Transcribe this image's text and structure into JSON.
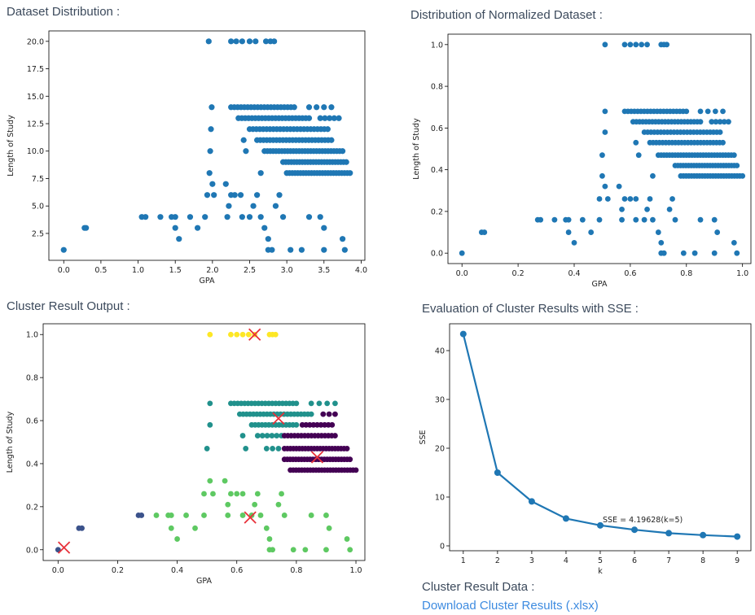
{
  "headings": {
    "dataset": "Dataset Distribution :",
    "normalized": "Distribution of Normalized Dataset :",
    "cluster": "Cluster Result Output :",
    "sse": "Evaluation of Cluster Results with SSE :",
    "cluster_data": "Cluster Result Data :"
  },
  "download_link": "Download Cluster Results (.xlsx)",
  "colors": {
    "point": "#1f77b4",
    "centroid": "#e8313a",
    "cluster_yellow": "#fde725",
    "cluster_teal": "#21918c",
    "cluster_purple": "#440154",
    "cluster_green": "#5ec962",
    "cluster_blue": "#3b528b"
  },
  "chart_data": [
    {
      "id": "dataset",
      "type": "scatter",
      "xlabel": "GPA",
      "ylabel": "Length of Study",
      "xlim": [
        -0.2,
        4.05
      ],
      "ylim": [
        0.05,
        20.95
      ],
      "xticks": [
        "0.0",
        "0.5",
        "1.0",
        "1.5",
        "2.0",
        "2.5",
        "3.0",
        "3.5",
        "4.0"
      ],
      "yticks": [
        "2.5",
        "5.0",
        "7.5",
        "10.0",
        "12.5",
        "15.0",
        "17.5",
        "20.0"
      ],
      "points": [
        [
          0,
          1
        ],
        [
          0.28,
          3
        ],
        [
          0.3,
          3
        ],
        [
          1.05,
          4
        ],
        [
          1.1,
          4
        ],
        [
          1.3,
          4
        ],
        [
          1.45,
          4
        ],
        [
          1.5,
          4
        ],
        [
          1.7,
          4
        ],
        [
          1.9,
          4
        ],
        [
          1.5,
          3
        ],
        [
          1.55,
          2
        ],
        [
          1.8,
          3
        ],
        [
          1.95,
          20
        ],
        [
          2.25,
          20
        ],
        [
          2.32,
          20
        ],
        [
          2.4,
          20
        ],
        [
          2.5,
          20
        ],
        [
          2.58,
          20
        ],
        [
          2.72,
          20
        ],
        [
          2.78,
          20
        ],
        [
          2.83,
          20
        ],
        [
          1.93,
          6
        ],
        [
          2.0,
          7
        ],
        [
          2.02,
          6
        ],
        [
          1.96,
          8
        ],
        [
          1.97,
          10
        ],
        [
          1.98,
          12
        ],
        [
          1.99,
          14
        ],
        [
          2.18,
          7
        ],
        [
          2.22,
          5
        ],
        [
          2.25,
          6
        ],
        [
          2.3,
          6
        ],
        [
          2.38,
          6
        ],
        [
          2.4,
          4
        ],
        [
          2.5,
          4
        ],
        [
          2.55,
          5
        ],
        [
          2.6,
          6
        ],
        [
          2.65,
          4
        ],
        [
          2.7,
          3
        ],
        [
          2.2,
          4
        ],
        [
          2.65,
          8
        ],
        [
          2.75,
          2
        ],
        [
          2.75,
          1
        ],
        [
          2.8,
          1
        ],
        [
          2.85,
          5
        ],
        [
          2.9,
          6
        ],
        [
          2.95,
          4
        ],
        [
          3.05,
          1
        ],
        [
          3.2,
          1
        ],
        [
          3.3,
          4
        ],
        [
          3.45,
          4
        ],
        [
          3.5,
          3
        ],
        [
          3.5,
          1
        ],
        [
          3.75,
          2
        ],
        [
          3.78,
          1
        ],
        [
          2.45,
          10
        ],
        [
          2.42,
          11
        ]
      ],
      "bands": [
        {
          "y": 14,
          "x0": 2.25,
          "x1": 3.1,
          "n": 20
        },
        {
          "y": 14,
          "x0": 3.3,
          "x1": 3.6,
          "n": 4
        },
        {
          "y": 13,
          "x0": 2.35,
          "x1": 3.3,
          "n": 22
        },
        {
          "y": 13,
          "x0": 3.45,
          "x1": 3.7,
          "n": 5
        },
        {
          "y": 12,
          "x0": 2.5,
          "x1": 3.55,
          "n": 24
        },
        {
          "y": 11,
          "x0": 2.6,
          "x1": 3.6,
          "n": 24
        },
        {
          "y": 10,
          "x0": 2.7,
          "x1": 3.75,
          "n": 28
        },
        {
          "y": 9,
          "x0": 2.95,
          "x1": 3.8,
          "n": 24
        },
        {
          "y": 8,
          "x0": 3.0,
          "x1": 3.85,
          "n": 24
        }
      ]
    },
    {
      "id": "normalized",
      "type": "scatter",
      "ylabel": "Length of Study",
      "xlabel": "GPA",
      "xlim": [
        -0.05,
        1.03
      ],
      "ylim": [
        -0.05,
        1.05
      ],
      "xticks": [
        "0.0",
        "0.2",
        "0.4",
        "0.6",
        "0.8",
        "1.0"
      ],
      "yticks": [
        "0.0",
        "0.2",
        "0.4",
        "0.6",
        "0.8",
        "1.0"
      ],
      "points": [
        [
          0,
          0
        ],
        [
          0.07,
          0.1
        ],
        [
          0.08,
          0.1
        ],
        [
          0.27,
          0.16
        ],
        [
          0.28,
          0.16
        ],
        [
          0.33,
          0.16
        ],
        [
          0.37,
          0.16
        ],
        [
          0.38,
          0.16
        ],
        [
          0.43,
          0.16
        ],
        [
          0.49,
          0.16
        ],
        [
          0.38,
          0.1
        ],
        [
          0.4,
          0.05
        ],
        [
          0.46,
          0.1
        ],
        [
          0.51,
          1.0
        ],
        [
          0.58,
          1.0
        ],
        [
          0.6,
          1.0
        ],
        [
          0.62,
          1.0
        ],
        [
          0.64,
          1.0
        ],
        [
          0.66,
          1.0
        ],
        [
          0.71,
          1.0
        ],
        [
          0.72,
          1.0
        ],
        [
          0.73,
          1.0
        ],
        [
          0.49,
          0.26
        ],
        [
          0.51,
          0.32
        ],
        [
          0.52,
          0.26
        ],
        [
          0.5,
          0.37
        ],
        [
          0.5,
          0.47
        ],
        [
          0.51,
          0.58
        ],
        [
          0.51,
          0.68
        ],
        [
          0.56,
          0.32
        ],
        [
          0.57,
          0.21
        ],
        [
          0.58,
          0.26
        ],
        [
          0.6,
          0.26
        ],
        [
          0.62,
          0.26
        ],
        [
          0.62,
          0.16
        ],
        [
          0.65,
          0.16
        ],
        [
          0.66,
          0.21
        ],
        [
          0.67,
          0.26
        ],
        [
          0.68,
          0.16
        ],
        [
          0.7,
          0.1
        ],
        [
          0.57,
          0.16
        ],
        [
          0.68,
          0.37
        ],
        [
          0.71,
          0.05
        ],
        [
          0.71,
          0.0
        ],
        [
          0.72,
          0.0
        ],
        [
          0.74,
          0.21
        ],
        [
          0.75,
          0.26
        ],
        [
          0.76,
          0.16
        ],
        [
          0.79,
          0.0
        ],
        [
          0.83,
          0.0
        ],
        [
          0.85,
          0.16
        ],
        [
          0.9,
          0.16
        ],
        [
          0.91,
          0.1
        ],
        [
          0.9,
          0.0
        ],
        [
          0.97,
          0.05
        ],
        [
          0.98,
          0.0
        ],
        [
          0.63,
          0.47
        ],
        [
          0.62,
          0.53
        ]
      ],
      "bands": [
        {
          "y": 0.68,
          "x0": 0.58,
          "x1": 0.8,
          "n": 20
        },
        {
          "y": 0.68,
          "x0": 0.85,
          "x1": 0.93,
          "n": 4
        },
        {
          "y": 0.63,
          "x0": 0.61,
          "x1": 0.85,
          "n": 22
        },
        {
          "y": 0.63,
          "x0": 0.89,
          "x1": 0.95,
          "n": 5
        },
        {
          "y": 0.58,
          "x0": 0.65,
          "x1": 0.92,
          "n": 24
        },
        {
          "y": 0.53,
          "x0": 0.67,
          "x1": 0.93,
          "n": 24
        },
        {
          "y": 0.47,
          "x0": 0.7,
          "x1": 0.97,
          "n": 28
        },
        {
          "y": 0.42,
          "x0": 0.76,
          "x1": 0.98,
          "n": 24
        },
        {
          "y": 0.37,
          "x0": 0.78,
          "x1": 1.0,
          "n": 24
        }
      ]
    },
    {
      "id": "cluster",
      "type": "scatter",
      "ylabel": "Length of Study",
      "xlabel": "GPA",
      "xlim": [
        -0.05,
        1.03
      ],
      "ylim": [
        -0.05,
        1.05
      ],
      "xticks": [
        "0.0",
        "0.2",
        "0.4",
        "0.6",
        "0.8",
        "1.0"
      ],
      "yticks": [
        "0.0",
        "0.2",
        "0.4",
        "0.6",
        "0.8",
        "1.0"
      ],
      "clusters": [
        {
          "color": "#fde725",
          "points": [
            [
              0.51,
              1.0
            ],
            [
              0.58,
              1.0
            ],
            [
              0.6,
              1.0
            ],
            [
              0.62,
              1.0
            ],
            [
              0.64,
              1.0
            ],
            [
              0.66,
              1.0
            ],
            [
              0.71,
              1.0
            ],
            [
              0.72,
              1.0
            ],
            [
              0.73,
              1.0
            ]
          ],
          "bands": []
        },
        {
          "color": "#21918c",
          "points": [
            [
              0.5,
              0.47
            ],
            [
              0.51,
              0.58
            ],
            [
              0.51,
              0.68
            ],
            [
              0.63,
              0.47
            ],
            [
              0.62,
              0.53
            ]
          ],
          "bands": [
            {
              "y": 0.68,
              "x0": 0.58,
              "x1": 0.8,
              "n": 20
            },
            {
              "y": 0.68,
              "x0": 0.85,
              "x1": 0.93,
              "n": 4
            },
            {
              "y": 0.63,
              "x0": 0.61,
              "x1": 0.85,
              "n": 22
            },
            {
              "y": 0.58,
              "x0": 0.65,
              "x1": 0.8,
              "n": 14
            },
            {
              "y": 0.53,
              "x0": 0.67,
              "x1": 0.75,
              "n": 6
            },
            {
              "y": 0.47,
              "x0": 0.7,
              "x1": 0.74,
              "n": 3
            }
          ]
        },
        {
          "color": "#440154",
          "points": [
            [
              0.89,
              0.63
            ],
            [
              0.91,
              0.63
            ],
            [
              0.93,
              0.63
            ]
          ],
          "bands": [
            {
              "y": 0.58,
              "x0": 0.82,
              "x1": 0.92,
              "n": 9
            },
            {
              "y": 0.53,
              "x0": 0.76,
              "x1": 0.93,
              "n": 16
            },
            {
              "y": 0.47,
              "x0": 0.76,
              "x1": 0.97,
              "n": 22
            },
            {
              "y": 0.42,
              "x0": 0.76,
              "x1": 0.98,
              "n": 24
            },
            {
              "y": 0.37,
              "x0": 0.78,
              "x1": 1.0,
              "n": 24
            }
          ]
        },
        {
          "color": "#5ec962",
          "points": [
            [
              0.33,
              0.16
            ],
            [
              0.37,
              0.16
            ],
            [
              0.38,
              0.16
            ],
            [
              0.43,
              0.16
            ],
            [
              0.49,
              0.16
            ],
            [
              0.38,
              0.1
            ],
            [
              0.4,
              0.05
            ],
            [
              0.46,
              0.1
            ],
            [
              0.49,
              0.26
            ],
            [
              0.51,
              0.32
            ],
            [
              0.52,
              0.26
            ],
            [
              0.56,
              0.32
            ],
            [
              0.57,
              0.21
            ],
            [
              0.58,
              0.26
            ],
            [
              0.6,
              0.26
            ],
            [
              0.62,
              0.26
            ],
            [
              0.62,
              0.16
            ],
            [
              0.65,
              0.16
            ],
            [
              0.66,
              0.21
            ],
            [
              0.67,
              0.26
            ],
            [
              0.68,
              0.16
            ],
            [
              0.7,
              0.1
            ],
            [
              0.57,
              0.16
            ],
            [
              0.71,
              0.05
            ],
            [
              0.71,
              0.0
            ],
            [
              0.72,
              0.0
            ],
            [
              0.74,
              0.21
            ],
            [
              0.75,
              0.26
            ],
            [
              0.76,
              0.16
            ],
            [
              0.79,
              0.0
            ],
            [
              0.83,
              0.0
            ],
            [
              0.85,
              0.16
            ],
            [
              0.9,
              0.16
            ],
            [
              0.91,
              0.1
            ],
            [
              0.9,
              0.0
            ],
            [
              0.97,
              0.05
            ],
            [
              0.98,
              0.0
            ]
          ],
          "bands": []
        },
        {
          "color": "#3b528b",
          "points": [
            [
              0,
              0
            ],
            [
              0.07,
              0.1
            ],
            [
              0.08,
              0.1
            ],
            [
              0.27,
              0.16
            ],
            [
              0.28,
              0.16
            ]
          ],
          "bands": []
        }
      ],
      "centroids": [
        [
          0.66,
          1.0
        ],
        [
          0.74,
          0.61
        ],
        [
          0.87,
          0.43
        ],
        [
          0.645,
          0.15
        ],
        [
          0.02,
          0.01
        ]
      ]
    },
    {
      "id": "sse",
      "type": "line",
      "xlabel": "k",
      "ylabel": "SSE",
      "xlim": [
        0.6,
        9.4
      ],
      "ylim": [
        -1,
        45.5
      ],
      "xticks": [
        "1",
        "2",
        "3",
        "4",
        "5",
        "6",
        "7",
        "8",
        "9"
      ],
      "yticks": [
        "0",
        "10",
        "20",
        "30",
        "40"
      ],
      "ytick_values": [
        0,
        10,
        20,
        30,
        40
      ],
      "x": [
        1,
        2,
        3,
        4,
        5,
        6,
        7,
        8,
        9
      ],
      "y": [
        43.4,
        15.0,
        9.1,
        5.6,
        4.19628,
        3.3,
        2.6,
        2.2,
        1.9
      ],
      "annotation": "SSE = 4.19628(k=5)"
    }
  ]
}
